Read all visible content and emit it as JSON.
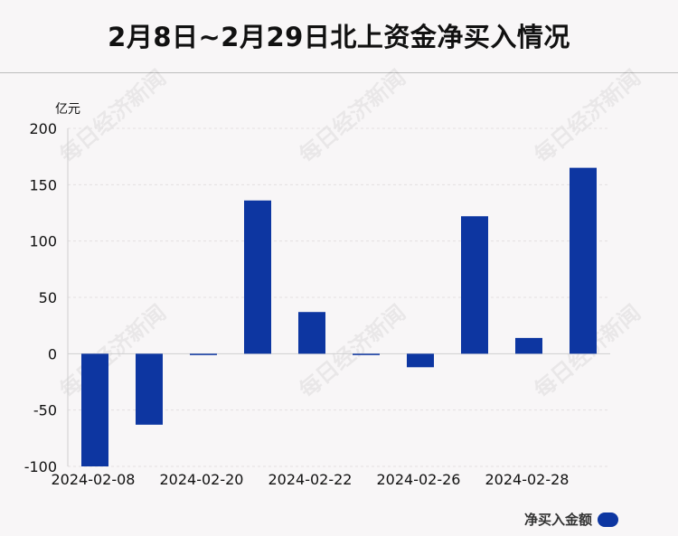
{
  "title": "2月8日~2月29日北上资金净买入情况",
  "watermark": "每日经济新闻",
  "chart_data": {
    "type": "bar",
    "unit": "亿元",
    "categories": [
      "2024-02-08",
      "",
      "2024-02-20",
      "",
      "2024-02-22",
      "",
      "2024-02-26",
      "",
      "2024-02-28",
      ""
    ],
    "series": [
      {
        "name": "净买入金额",
        "color": "#0d36a1",
        "values": [
          -100,
          -63,
          -1,
          136,
          37,
          -0.5,
          -12,
          122,
          14,
          165
        ]
      }
    ],
    "ylim": [
      -100,
      200
    ],
    "yticks": [
      200,
      150,
      100,
      50,
      0,
      -50,
      -100
    ],
    "grid": true,
    "legend_position": "bottom-right"
  }
}
